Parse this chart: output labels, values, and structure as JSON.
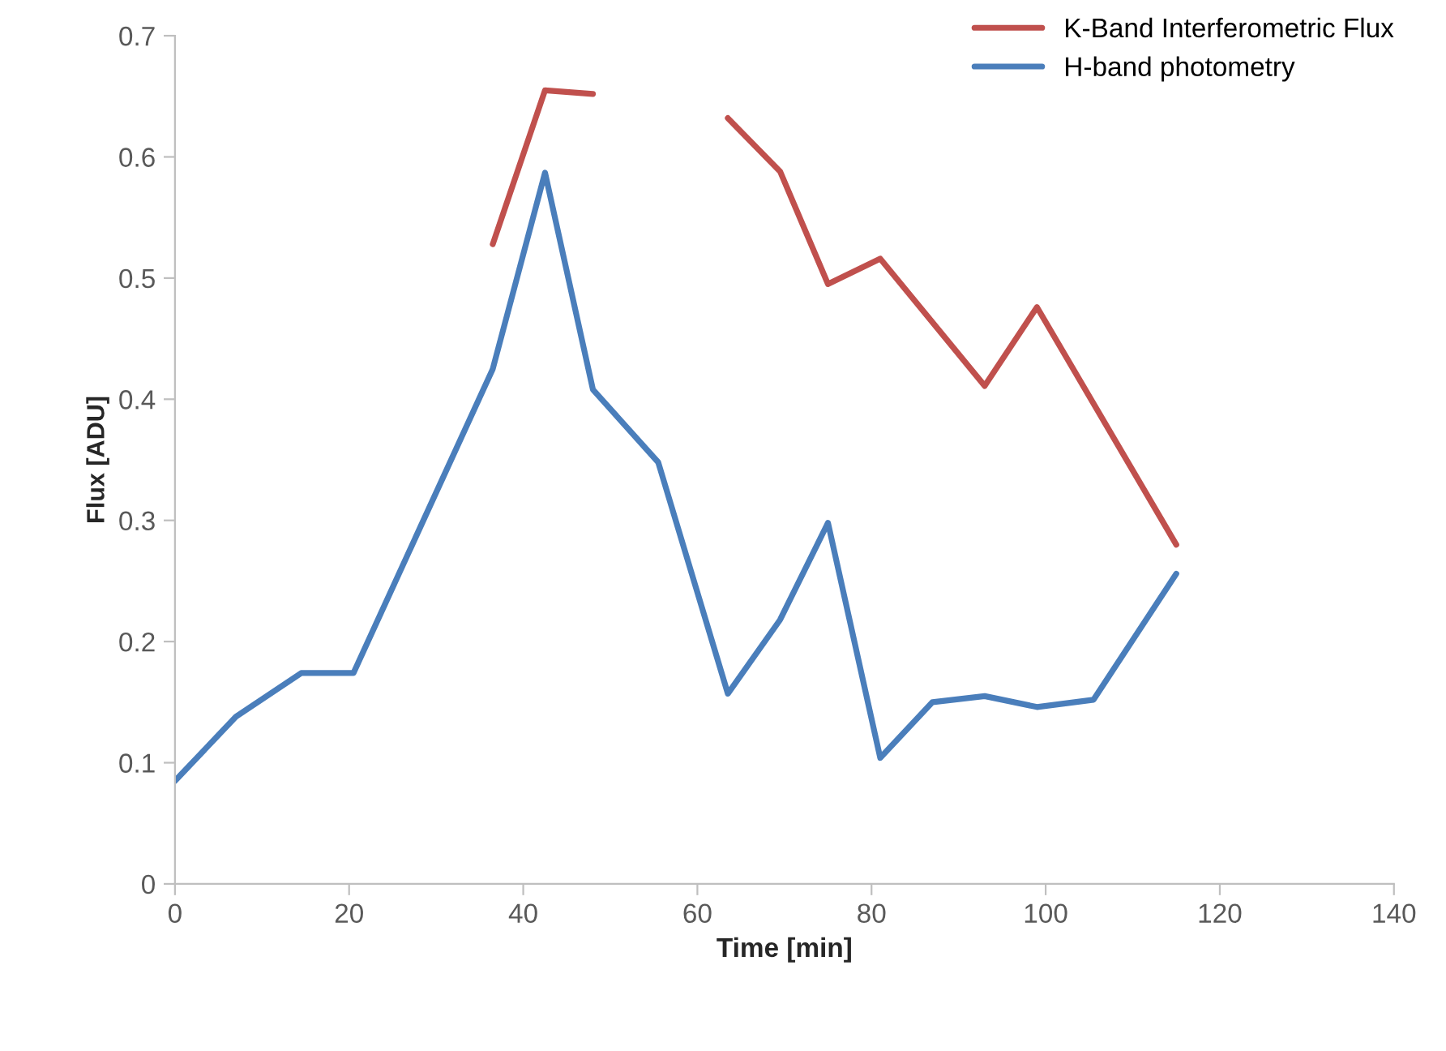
{
  "chart_data": {
    "type": "line",
    "xlabel": "Time [min]",
    "ylabel": "Flux [ADU]",
    "x": [
      0,
      7,
      14.5,
      20.5,
      36.5,
      42.5,
      48,
      55.5,
      63.5,
      69.5,
      75,
      81,
      87,
      93,
      99,
      105.5,
      115
    ],
    "series": [
      {
        "name": "K-Band Interferometric Flux",
        "color": "#c0504d",
        "x": [
          36.5,
          42.5,
          48,
          55.5,
          63.5,
          69.5,
          75,
          81,
          93,
          99,
          115
        ],
        "values": [
          0.528,
          0.655,
          0.652,
          null,
          0.632,
          0.588,
          0.495,
          0.516,
          0.411,
          0.476,
          0.28
        ]
      },
      {
        "name": "H-band photometry",
        "color": "#4a7ebb",
        "values": [
          0.085,
          0.138,
          0.174,
          0.174,
          0.425,
          0.587,
          0.408,
          0.348,
          0.157,
          0.218,
          0.298,
          0.104,
          0.15,
          0.155,
          0.146,
          0.152,
          0.256
        ]
      }
    ],
    "xlim": [
      0,
      140
    ],
    "xticks": [
      0,
      20,
      40,
      60,
      80,
      100,
      120,
      140
    ],
    "ylim": [
      0,
      0.7
    ],
    "yticks": [
      0,
      0.1,
      0.2,
      0.3,
      0.4,
      0.5,
      0.6,
      0.7
    ],
    "legend": "top right",
    "grid": false,
    "marker": "none",
    "line_style": "solid"
  }
}
